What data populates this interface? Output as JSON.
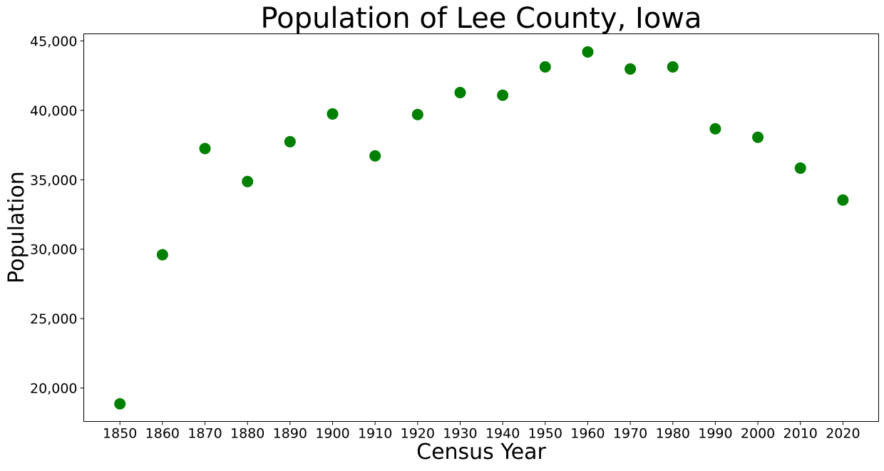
{
  "chart_data": {
    "type": "scatter",
    "title": "Population of Lee County, Iowa",
    "xlabel": "Census Year",
    "ylabel": "Population",
    "x": [
      1850,
      1860,
      1870,
      1880,
      1890,
      1900,
      1910,
      1920,
      1930,
      1940,
      1950,
      1960,
      1970,
      1980,
      1990,
      2000,
      2010,
      2020
    ],
    "series": [
      {
        "values": [
          18860,
          29600,
          37250,
          34870,
          37740,
          39740,
          36720,
          39700,
          41280,
          41090,
          43130,
          44210,
          42980,
          43130,
          38670,
          38060,
          35840,
          33540
        ],
        "color": "#008000"
      }
    ],
    "xticks": [
      "1850",
      "1860",
      "1870",
      "1880",
      "1890",
      "1900",
      "1910",
      "1920",
      "1930",
      "1940",
      "1950",
      "1960",
      "1970",
      "1980",
      "1990",
      "2000",
      "2010",
      "2020"
    ],
    "yticks": [
      20000,
      25000,
      30000,
      35000,
      40000,
      45000
    ],
    "ytick_labels": [
      "20,000",
      "25,000",
      "30,000",
      "35,000",
      "40,000",
      "45,000"
    ],
    "xlim": [
      1841.5,
      2028.4
    ],
    "ylim": [
      17590,
      45510
    ],
    "grid": false,
    "legend": "none"
  }
}
